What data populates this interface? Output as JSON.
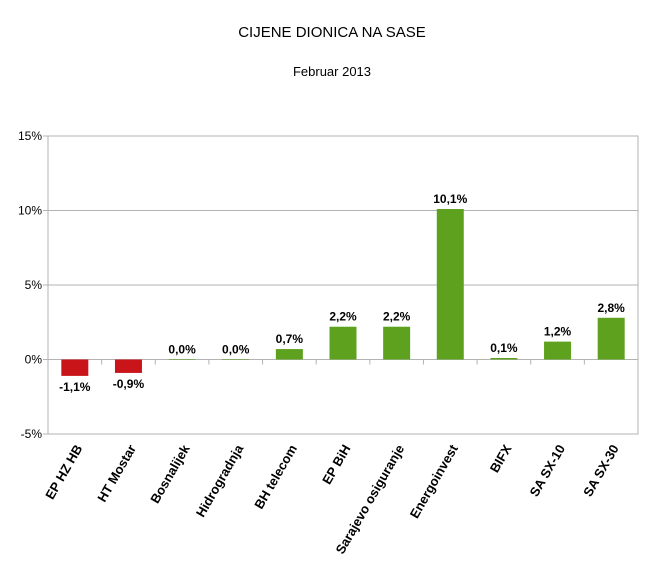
{
  "chart_data": {
    "type": "bar",
    "title": "CIJENE DIONICA NA SASE",
    "subtitle": "Februar 2013",
    "categories": [
      "EP HZ HB",
      "HT Mostar",
      "Bosnalijek",
      "Hidrogradnja",
      "BH telecom",
      "EP BiH",
      "Sarajevo osiguranje",
      "Energoinvest",
      "BIFX",
      "SA SX-10",
      "SA SX-30"
    ],
    "values": [
      -1.1,
      -0.9,
      0.0,
      0.0,
      0.7,
      2.2,
      2.2,
      10.1,
      0.1,
      1.2,
      2.8
    ],
    "data_labels": [
      "-1,1%",
      "-0,9%",
      "0,0%",
      "0,0%",
      "0,7%",
      "2,2%",
      "2,2%",
      "10,1%",
      "0,1%",
      "1,2%",
      "2,8%"
    ],
    "yticks": [
      -5,
      0,
      5,
      10,
      15
    ],
    "ytick_labels": [
      "-5%",
      "0%",
      "5%",
      "10%",
      "15%"
    ],
    "ylim": [
      -5,
      15
    ],
    "grid": true,
    "legend": "none",
    "colors": {
      "positive": "#5ea11e",
      "negative": "#c9141a",
      "grid": "#b3b3b3",
      "axis": "#b3b3b3"
    }
  }
}
